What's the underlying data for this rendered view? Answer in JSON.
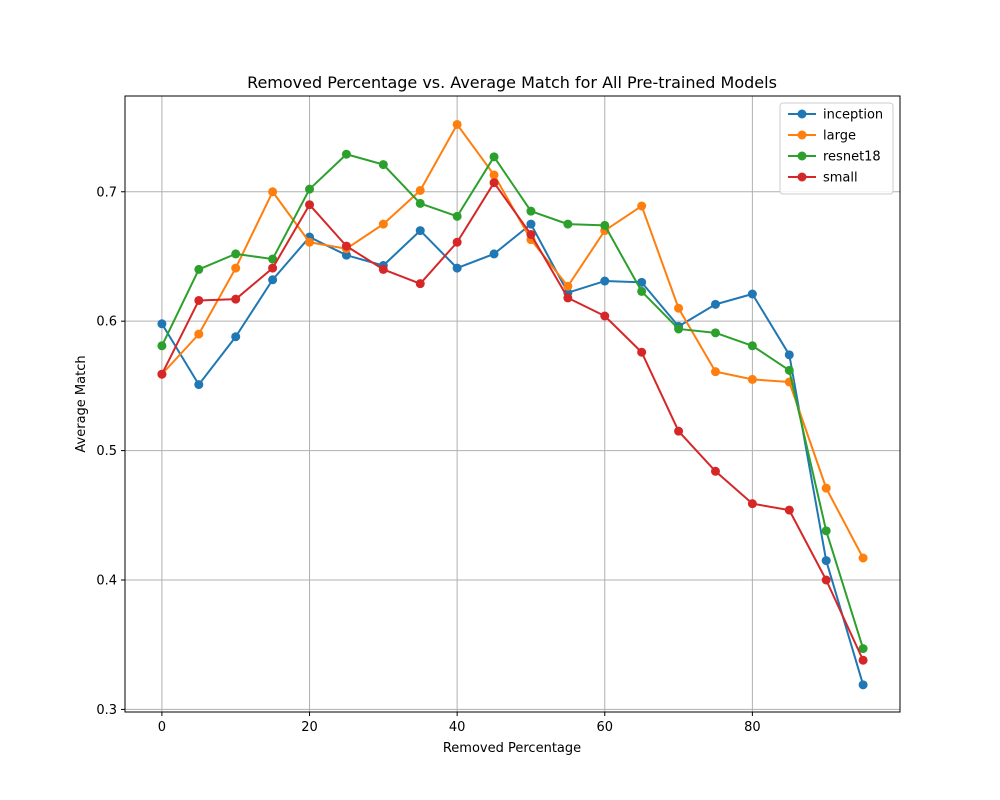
{
  "chart_data": {
    "type": "line",
    "title": "Removed Percentage vs. Average Match for All Pre-trained Models",
    "xlabel": "Removed Percentage",
    "ylabel": "Average Match",
    "xlim": [
      -5,
      100
    ],
    "ylim": [
      0.298,
      0.774
    ],
    "xticks": [
      0,
      20,
      40,
      60,
      80
    ],
    "yticks": [
      0.3,
      0.4,
      0.5,
      0.6,
      0.7
    ],
    "xtick_labels": [
      "0",
      "20",
      "40",
      "60",
      "80"
    ],
    "ytick_labels": [
      "0.3",
      "0.4",
      "0.5",
      "0.6",
      "0.7"
    ],
    "grid": true,
    "legend_position": "top-right",
    "x": [
      0,
      5,
      10,
      15,
      20,
      25,
      30,
      35,
      40,
      45,
      50,
      55,
      60,
      65,
      70,
      75,
      80,
      85,
      90,
      95
    ],
    "series": [
      {
        "name": "inception",
        "color": "#1f77b4",
        "values": [
          0.598,
          0.551,
          0.588,
          0.632,
          0.665,
          0.651,
          0.643,
          0.67,
          0.641,
          0.652,
          0.675,
          0.622,
          0.631,
          0.63,
          0.596,
          0.613,
          0.621,
          0.574,
          0.415,
          0.319
        ]
      },
      {
        "name": "large",
        "color": "#ff7f0e",
        "values": [
          0.559,
          0.59,
          0.641,
          0.7,
          0.661,
          0.656,
          0.675,
          0.701,
          0.752,
          0.713,
          0.663,
          0.627,
          0.67,
          0.689,
          0.61,
          0.561,
          0.555,
          0.553,
          0.471,
          0.417
        ]
      },
      {
        "name": "resnet18",
        "color": "#2ca02c",
        "values": [
          0.581,
          0.64,
          0.652,
          0.648,
          0.702,
          0.729,
          0.721,
          0.691,
          0.681,
          0.727,
          0.685,
          0.675,
          0.674,
          0.623,
          0.594,
          0.591,
          0.581,
          0.562,
          0.438,
          0.347
        ]
      },
      {
        "name": "small",
        "color": "#d62728",
        "values": [
          0.559,
          0.616,
          0.617,
          0.641,
          0.69,
          0.658,
          0.64,
          0.629,
          0.661,
          0.707,
          0.667,
          0.618,
          0.604,
          0.576,
          0.515,
          0.484,
          0.459,
          0.454,
          0.4,
          0.338
        ]
      }
    ]
  }
}
